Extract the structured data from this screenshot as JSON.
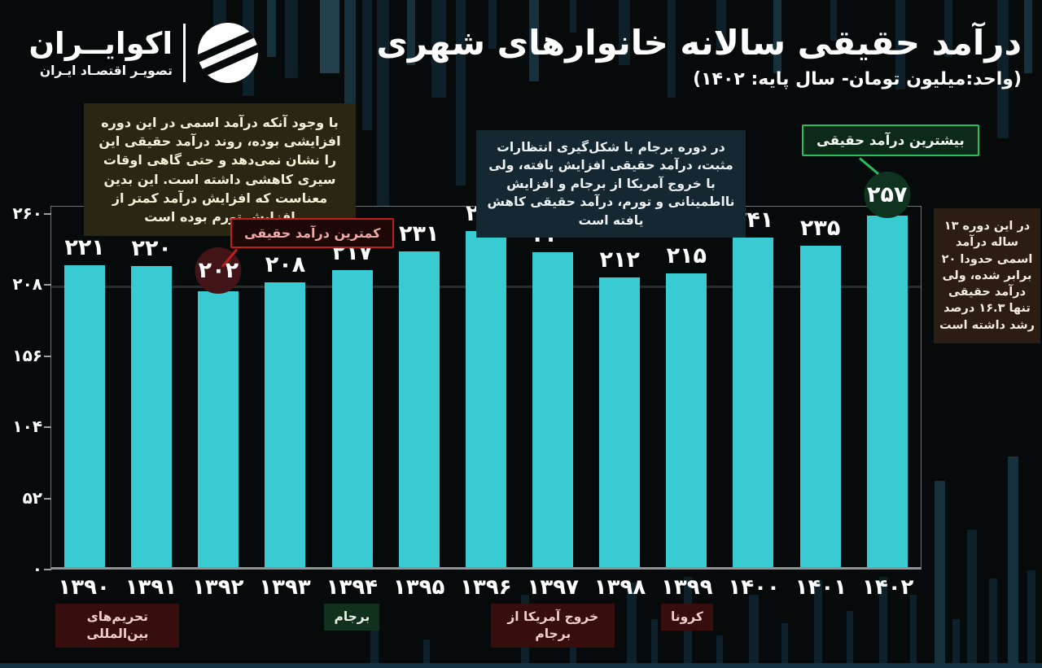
{
  "brand": {
    "name": "اکوایــران",
    "tagline": "تصویـر اقتصـاد ایـران"
  },
  "header": {
    "title": "درآمد حقیقی سالانه خانوارهای شهری",
    "subtitle": "(واحد:میلیون تومان- سال پایه: ۱۴۰۲)"
  },
  "notes": {
    "left": "با وجود آنکه درآمد اسمی در این دوره افزایشی بوده، روند درآمد حقیقی این را نشان نمی‌دهد و حتی گاهی اوقات سیری کاهشی داشته است. این بدین معناست که افزایش درآمد کمتر از افزایش تورم بوده است",
    "middle": "در دوره برجام با شکل‌گیری انتظارات مثبت، درآمد حقیقی افزایش یافته، ولی با خروج آمریکا از برجام و افزایش نااطمینانی و تورم، درآمد حقیقی کاهش یافته است",
    "right": "در این دوره ۱۳ ساله درآمد اسمی حدودا ۲۰ برابر شده، ولی درآمد حقیقی تنها ۱۶.۳ درصد رشد داشته است"
  },
  "callouts": {
    "min": {
      "label": "کمترین درآمد حقیقی",
      "value": "۲۰۲",
      "line_color": "#c21d1d",
      "circle_color": "#421317"
    },
    "max": {
      "label": "بیشترین درآمد حقیقی",
      "value": "۲۵۷",
      "line_color": "#2abd5e",
      "circle_color": "#0e3420"
    }
  },
  "chart_data": {
    "type": "bar",
    "title": "درآمد حقیقی سالانه خانوارهای شهری",
    "unit": "میلیون تومان",
    "base_year": "۱۴۰۲",
    "categories": [
      "۱۳۹۰",
      "۱۳۹۱",
      "۱۳۹۲",
      "۱۳۹۳",
      "۱۳۹۴",
      "۱۳۹۵",
      "۱۳۹۶",
      "۱۳۹۷",
      "۱۳۹۸",
      "۱۳۹۹",
      "۱۴۰۰",
      "۱۴۰۱",
      "۱۴۰۲"
    ],
    "categories_numeric": [
      1390,
      1391,
      1392,
      1393,
      1394,
      1395,
      1396,
      1397,
      1398,
      1399,
      1400,
      1401,
      1402
    ],
    "values": [
      221,
      220,
      202,
      208,
      217,
      231,
      246,
      230,
      212,
      215,
      241,
      235,
      257
    ],
    "value_labels": [
      "۲۲۱",
      "۲۲۰",
      "۲۰۲",
      "۲۰۸",
      "۲۱۷",
      "۲۳۱",
      "۲۴۶",
      "۲۳۰",
      "۲۱۲",
      "۲۱۵",
      "۲۴۱",
      "۲۳۵",
      "۲۵۷"
    ],
    "ylim": [
      0,
      260
    ],
    "yticks": [
      {
        "value": 260,
        "label": "۲۶۰"
      },
      {
        "value": 208,
        "label": "۲۰۸"
      },
      {
        "value": 156,
        "label": "۱۵۶"
      },
      {
        "value": 104,
        "label": "۱۰۴"
      },
      {
        "value": 52,
        "label": "۵۲"
      },
      {
        "value": 0,
        "label": "۰"
      }
    ],
    "gridline_at": 208,
    "bar_color": "#38ccd2",
    "min_index": 2,
    "max_index": 12,
    "legend": "none",
    "grid": "single horizontal line at 208",
    "events": [
      {
        "label": "تحریم‌های بین‌المللی",
        "anchor": 0.5,
        "style": "red"
      },
      {
        "label": "برجام",
        "anchor": 4,
        "style": "green"
      },
      {
        "label": "خروج آمریکا از برجام",
        "anchor": 7,
        "style": "red"
      },
      {
        "label": "کرونا",
        "anchor": 9,
        "style": "red"
      }
    ]
  }
}
